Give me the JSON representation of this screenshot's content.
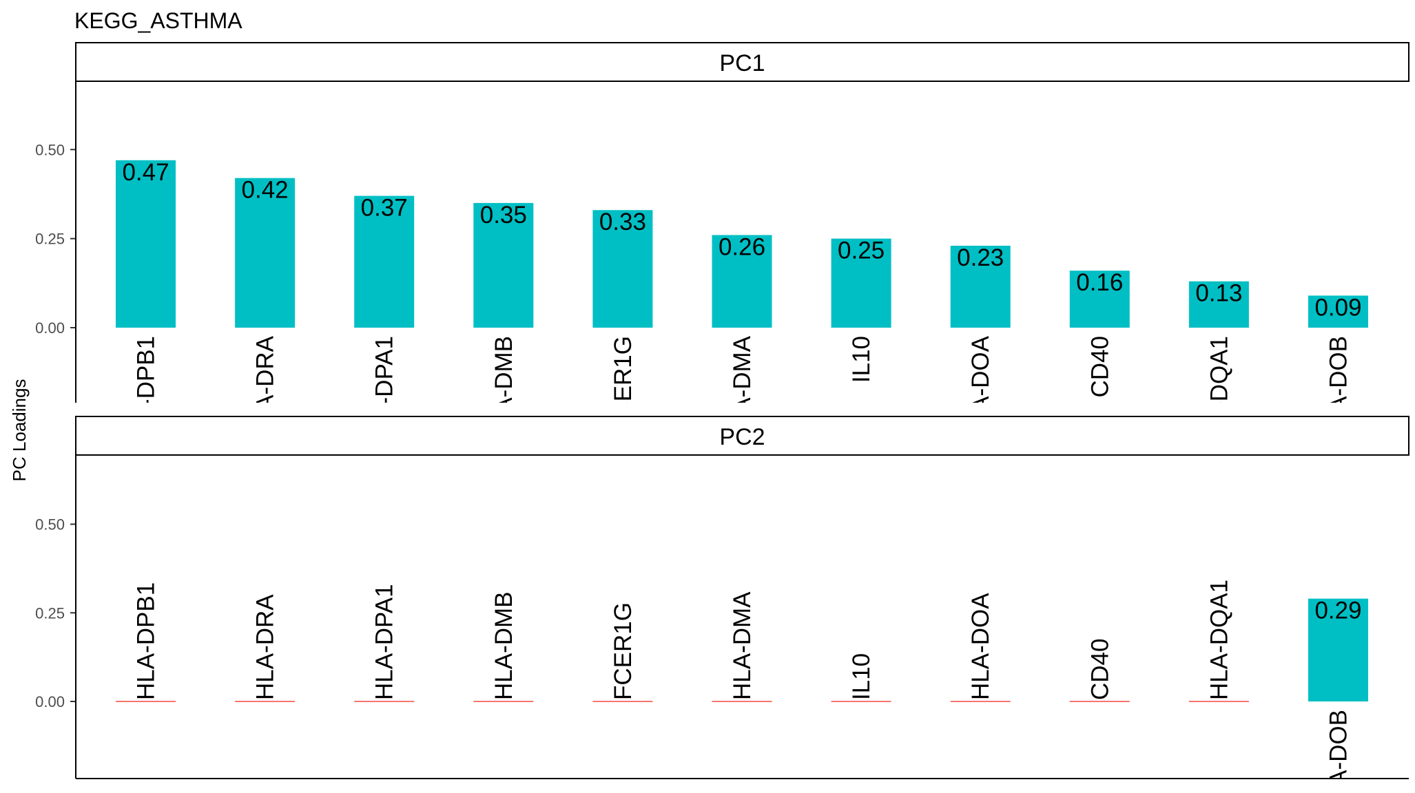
{
  "chart_data": {
    "type": "bar",
    "title": "KEGG_ASTHMA",
    "ylabel": "PC Loadings",
    "xlabel": "",
    "ylim": [
      -0.21,
      0.7
    ],
    "yticks": [
      "0.00",
      "0.25",
      "0.50"
    ],
    "ytick_values": [
      0,
      0.25,
      0.5
    ],
    "bar_color": "#00BFC4",
    "zero_line_color": "#F8766D",
    "categories": [
      "HLA-DPB1",
      "HLA-DRA",
      "HLA-DPA1",
      "HLA-DMB",
      "FCER1G",
      "HLA-DMA",
      "IL10",
      "HLA-DOA",
      "CD40",
      "HLA-DQA1",
      "HLA-DOB"
    ],
    "series": [
      {
        "name": "PC1",
        "values": [
          0.47,
          0.42,
          0.37,
          0.35,
          0.33,
          0.26,
          0.25,
          0.23,
          0.16,
          0.13,
          0.09
        ],
        "labels": [
          "0.47",
          "0.42",
          "0.37",
          "0.35",
          "0.33",
          "0.26",
          "0.25",
          "0.23",
          "0.16",
          "0.13",
          "0.09"
        ]
      },
      {
        "name": "PC2",
        "values": [
          0,
          0,
          0,
          0,
          0,
          0,
          0,
          0,
          0,
          0,
          0.29
        ],
        "labels": [
          "",
          "",
          "",
          "",
          "",
          "",
          "",
          "",
          "",
          "",
          "0.29"
        ]
      }
    ]
  }
}
